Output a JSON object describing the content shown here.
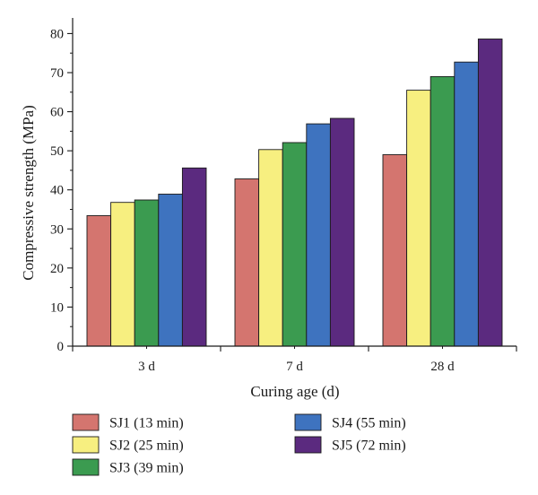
{
  "chart_data": {
    "type": "bar",
    "categories": [
      "3 d",
      "7 d",
      "28 d"
    ],
    "series": [
      {
        "name": "SJ1 (13 min)",
        "color": "#d4756f",
        "values": [
          33.4,
          42.8,
          49.0
        ]
      },
      {
        "name": "SJ2 (25 min)",
        "color": "#f7ef80",
        "values": [
          36.8,
          50.3,
          65.5
        ]
      },
      {
        "name": "SJ3 (39 min)",
        "color": "#3b9b50",
        "values": [
          37.4,
          52.1,
          69.0
        ]
      },
      {
        "name": "SJ4 (55 min)",
        "color": "#3e73bf",
        "values": [
          38.9,
          56.9,
          72.7
        ]
      },
      {
        "name": "SJ5 (72 min)",
        "color": "#5b2a7f",
        "values": [
          45.6,
          58.3,
          78.6
        ]
      }
    ],
    "xlabel": "Curing age (d)",
    "ylabel": "Compressive strength (MPa)",
    "ylim": [
      0,
      84
    ],
    "yticks": [
      0,
      10,
      20,
      30,
      40,
      50,
      60,
      70,
      80
    ],
    "grid": false,
    "legend_position": "bottom"
  }
}
